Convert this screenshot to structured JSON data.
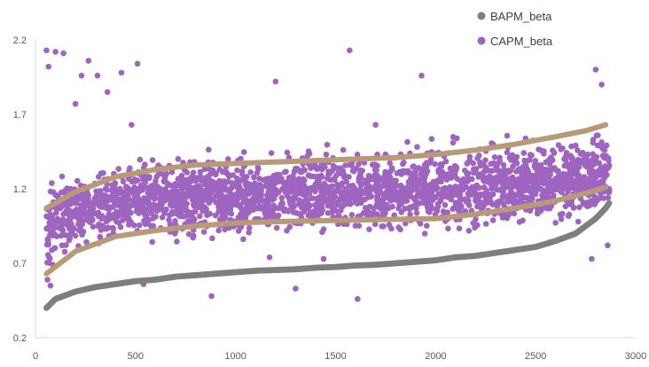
{
  "chart_data": {
    "type": "scatter",
    "title": "",
    "xlabel": "",
    "ylabel": "",
    "xlim": [
      0,
      3000
    ],
    "ylim": [
      0.2,
      2.2
    ],
    "x_ticks": [
      0,
      500,
      1000,
      1500,
      2000,
      2500,
      3000
    ],
    "y_ticks": [
      0.2,
      0.7,
      1.2,
      1.7,
      2.2
    ],
    "x_tick_labels": [
      "0",
      "500",
      "1000",
      "1500",
      "2000",
      "2500",
      "3000"
    ],
    "y_tick_labels": [
      "0.2",
      "0.7",
      "1.2",
      "1.7",
      "2.2"
    ],
    "grid": false,
    "legend_position": "top-right",
    "legend": [
      {
        "label": "BAPM_beta",
        "color": "#7f7f7f"
      },
      {
        "label": "CAPM_beta",
        "color": "#9e64bf"
      }
    ],
    "series": [
      {
        "name": "BAPM_beta",
        "color": "#7f7f7f",
        "x": [
          55,
          100,
          200,
          300,
          400,
          500,
          600,
          700,
          800,
          900,
          1000,
          1100,
          1200,
          1300,
          1400,
          1500,
          1600,
          1700,
          1800,
          1900,
          2000,
          2100,
          2200,
          2300,
          2400,
          2500,
          2600,
          2700,
          2750,
          2800,
          2850,
          2870
        ],
        "y": [
          0.4,
          0.46,
          0.51,
          0.54,
          0.56,
          0.58,
          0.59,
          0.61,
          0.62,
          0.63,
          0.64,
          0.65,
          0.655,
          0.66,
          0.67,
          0.675,
          0.685,
          0.69,
          0.7,
          0.71,
          0.72,
          0.74,
          0.75,
          0.77,
          0.79,
          0.81,
          0.85,
          0.9,
          0.95,
          1.0,
          1.07,
          1.11
        ]
      },
      {
        "name": "CAPM_beta",
        "color": "#9e64bf",
        "x_range": [
          55,
          2870
        ],
        "band_center": [
          [
            55,
            0.95
          ],
          [
            200,
            1.05
          ],
          [
            500,
            1.12
          ],
          [
            1000,
            1.15
          ],
          [
            1500,
            1.18
          ],
          [
            2000,
            1.2
          ],
          [
            2500,
            1.25
          ],
          [
            2870,
            1.3
          ]
        ],
        "band_upper": [
          [
            55,
            1.07
          ],
          [
            200,
            1.2
          ],
          [
            500,
            1.32
          ],
          [
            1000,
            1.37
          ],
          [
            1500,
            1.39
          ],
          [
            2000,
            1.43
          ],
          [
            2500,
            1.5
          ],
          [
            2850,
            1.62
          ]
        ],
        "band_lower": [
          [
            55,
            0.63
          ],
          [
            200,
            0.82
          ],
          [
            500,
            0.93
          ],
          [
            1000,
            0.97
          ],
          [
            1500,
            0.98
          ],
          [
            2000,
            1.0
          ],
          [
            2500,
            1.07
          ],
          [
            2850,
            1.2
          ]
        ],
        "outliers": [
          [
            55,
            2.13
          ],
          [
            65,
            2.02
          ],
          [
            100,
            2.12
          ],
          [
            140,
            2.11
          ],
          [
            200,
            1.77
          ],
          [
            230,
            1.96
          ],
          [
            265,
            2.06
          ],
          [
            310,
            1.96
          ],
          [
            360,
            1.85
          ],
          [
            430,
            1.98
          ],
          [
            510,
            2.04
          ],
          [
            480,
            1.63
          ],
          [
            1200,
            1.92
          ],
          [
            1570,
            2.13
          ],
          [
            1930,
            1.96
          ],
          [
            2800,
            2.0
          ],
          [
            2830,
            1.9
          ],
          [
            880,
            0.48
          ],
          [
            1610,
            0.46
          ],
          [
            1300,
            0.53
          ],
          [
            540,
            0.56
          ],
          [
            75,
            0.55
          ],
          [
            60,
            0.59
          ],
          [
            1170,
            0.74
          ],
          [
            2780,
            0.73
          ],
          [
            2860,
            0.82
          ],
          [
            1440,
            0.73
          ],
          [
            820,
            1.22
          ],
          [
            1700,
            1.63
          ]
        ]
      }
    ],
    "trend_lines": [
      {
        "color": "#b99a78",
        "x": [
          55,
          200,
          400,
          600,
          800,
          1000,
          1200,
          1400,
          1600,
          1800,
          2000,
          2200,
          2400,
          2600,
          2750,
          2850
        ],
        "y": [
          1.07,
          1.18,
          1.28,
          1.33,
          1.36,
          1.37,
          1.38,
          1.39,
          1.4,
          1.41,
          1.43,
          1.46,
          1.5,
          1.55,
          1.59,
          1.63
        ]
      },
      {
        "color": "#b99a78",
        "x": [
          55,
          200,
          400,
          600,
          800,
          1000,
          1200,
          1400,
          1600,
          1800,
          2000,
          2200,
          2400,
          2600,
          2750,
          2850
        ],
        "y": [
          0.63,
          0.78,
          0.88,
          0.92,
          0.95,
          0.97,
          0.98,
          0.985,
          0.99,
          0.995,
          1.0,
          1.03,
          1.07,
          1.12,
          1.17,
          1.21
        ]
      }
    ]
  }
}
